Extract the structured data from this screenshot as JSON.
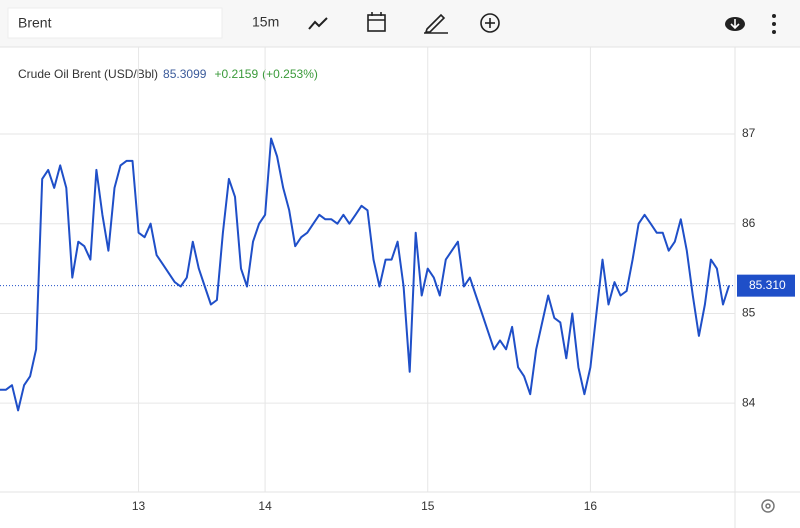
{
  "toolbar": {
    "symbol": "Brent",
    "interval": "15m"
  },
  "chart_data": {
    "type": "line",
    "title": "Crude Oil Brent (USD/Bbl)",
    "last": "85.3099",
    "change": "+0.2159",
    "change_pct": "(+0.253%)",
    "last_price": {
      "value": 85.31,
      "label": "85.310"
    },
    "xlim": [
      0,
      122
    ],
    "ylim": [
      83.01,
      87.97
    ],
    "xticks": [
      {
        "value": 23,
        "label": "13"
      },
      {
        "value": 44,
        "label": "14"
      },
      {
        "value": 71,
        "label": "15"
      },
      {
        "value": 98,
        "label": "16"
      }
    ],
    "yticks": [
      84,
      85,
      86,
      87
    ],
    "grid": true,
    "series": [
      {
        "color": "#1f4fc8",
        "x": [
          0,
          1,
          2,
          3,
          4,
          5,
          6,
          7,
          8,
          9,
          10,
          11,
          12,
          13,
          14,
          15,
          16,
          17,
          18,
          19,
          20,
          21,
          22,
          23,
          24,
          25,
          26,
          27,
          28,
          29,
          30,
          31,
          32,
          33,
          34,
          35,
          36,
          37,
          38,
          39,
          40,
          41,
          42,
          43,
          44,
          45,
          46,
          47,
          48,
          49,
          50,
          51,
          52,
          53,
          54,
          55,
          56,
          57,
          58,
          59,
          60,
          61,
          62,
          63,
          64,
          65,
          66,
          67,
          68,
          69,
          70,
          71,
          72,
          73,
          74,
          75,
          76,
          77,
          78,
          79,
          80,
          81,
          82,
          83,
          84,
          85,
          86,
          87,
          88,
          89,
          90,
          91,
          92,
          93,
          94,
          95,
          96,
          97,
          98,
          99,
          100,
          101,
          102,
          103,
          104,
          105,
          106,
          107,
          108,
          109,
          110,
          111,
          112,
          113,
          114,
          115,
          116,
          117,
          118,
          119,
          120,
          121
        ],
        "values": [
          84.15,
          84.15,
          84.2,
          83.92,
          84.2,
          84.3,
          84.6,
          86.5,
          86.6,
          86.4,
          86.65,
          86.4,
          85.4,
          85.8,
          85.75,
          85.6,
          86.6,
          86.1,
          85.7,
          86.4,
          86.65,
          86.7,
          86.7,
          85.9,
          85.85,
          86.0,
          85.65,
          85.55,
          85.45,
          85.35,
          85.3,
          85.4,
          85.8,
          85.5,
          85.3,
          85.1,
          85.15,
          85.9,
          86.5,
          86.3,
          85.5,
          85.3,
          85.8,
          86.0,
          86.1,
          86.95,
          86.75,
          86.4,
          86.15,
          85.75,
          85.85,
          85.9,
          86.0,
          86.1,
          86.05,
          86.05,
          86.0,
          86.1,
          86.0,
          86.1,
          86.2,
          86.15,
          85.6,
          85.3,
          85.6,
          85.6,
          85.8,
          85.3,
          84.35,
          85.9,
          85.2,
          85.5,
          85.4,
          85.2,
          85.6,
          85.7,
          85.8,
          85.3,
          85.4,
          85.2,
          85.0,
          84.8,
          84.6,
          84.7,
          84.6,
          84.85,
          84.4,
          84.3,
          84.1,
          84.6,
          84.9,
          85.2,
          84.95,
          84.9,
          84.5,
          85.0,
          84.4,
          84.1,
          84.4,
          85.0,
          85.6,
          85.1,
          85.35,
          85.2,
          85.25,
          85.6,
          86.0,
          86.1,
          86.0,
          85.9,
          85.9,
          85.7,
          85.8,
          86.05,
          85.7,
          85.2,
          84.75,
          85.1,
          85.6,
          85.5,
          85.1,
          85.31
        ]
      }
    ]
  }
}
